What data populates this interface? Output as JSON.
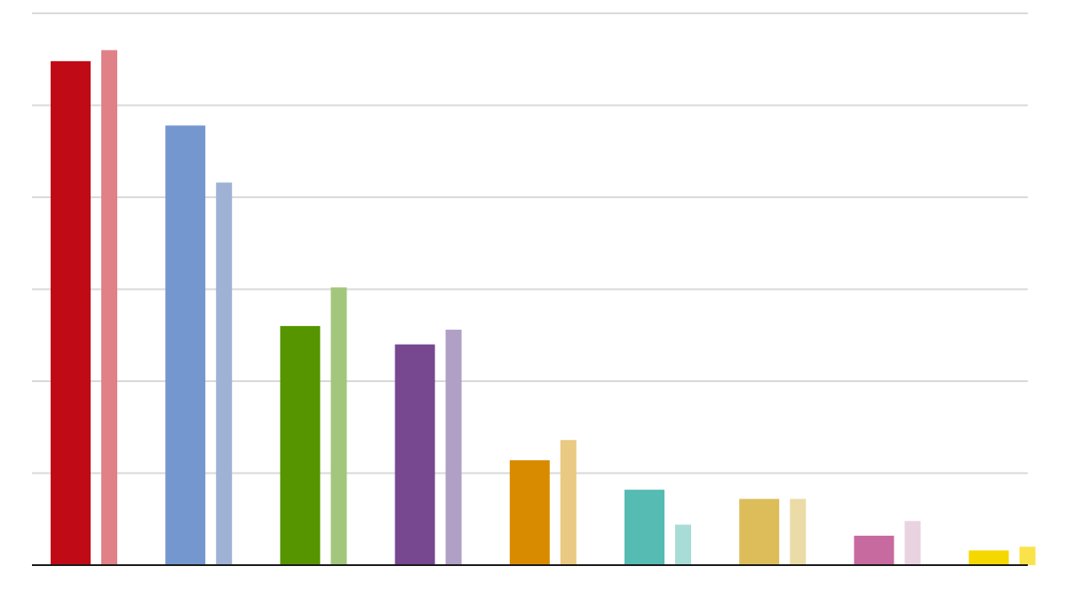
{
  "chart_data": {
    "type": "bar",
    "title": "",
    "xlabel": "",
    "ylabel": "",
    "ylim": [
      0,
      30
    ],
    "grid": true,
    "legend": "none",
    "categories": [
      "",
      "",
      "",
      "",
      "",
      "",
      "",
      "",
      ""
    ],
    "series": [
      {
        "values": [
          27.4,
          23.9,
          13.0,
          12.0,
          5.7,
          4.1,
          3.6,
          1.6,
          0.8
        ]
      },
      {
        "values": [
          28.0,
          20.8,
          15.1,
          12.8,
          6.8,
          2.2,
          3.6,
          2.4,
          1.0
        ]
      }
    ],
    "colors": {
      "primary": [
        "#c00a16",
        "#7597cf",
        "#569500",
        "#77478f",
        "#d98b00",
        "#55bbb3",
        "#dcbd5a",
        "#c76aa0",
        "#f5d800"
      ],
      "secondary": [
        "#e08188",
        "#9fb2d6",
        "#a2c67c",
        "#b1a0c6",
        "#eac982",
        "#a8dcd7",
        "#ebdba6",
        "#ead3e1",
        "#fae24a"
      ]
    }
  }
}
